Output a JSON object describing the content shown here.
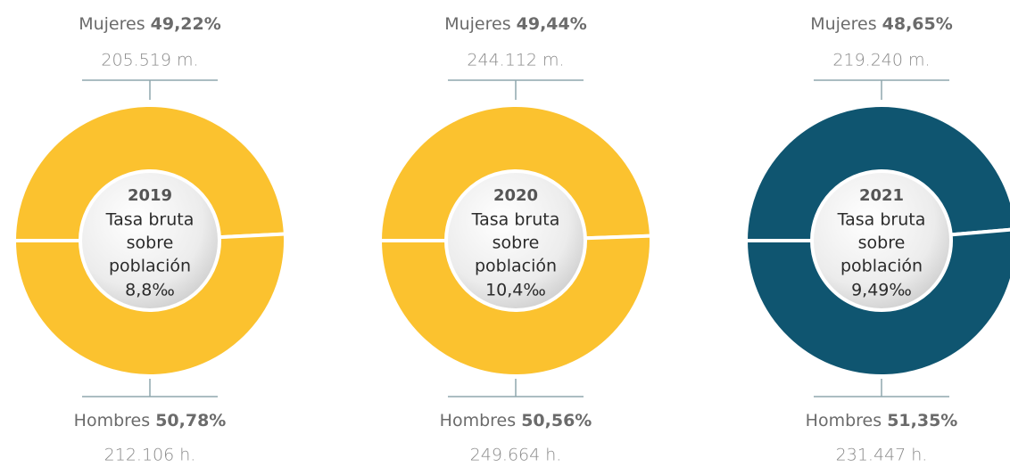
{
  "chart_data": [
    {
      "type": "pie",
      "year": "2019",
      "center_lines": [
        "Tasa bruta",
        "sobre",
        "población"
      ],
      "rate_label": "8,8‰",
      "categories": [
        "Mujeres",
        "Hombres"
      ],
      "values": [
        49.22,
        50.78
      ],
      "value_labels": [
        "49,22%",
        "50,78%"
      ],
      "count_labels": [
        "205.519 m.",
        "212.106 h."
      ],
      "color": "#fbc22f"
    },
    {
      "type": "pie",
      "year": "2020",
      "center_lines": [
        "Tasa bruta",
        "sobre",
        "población"
      ],
      "rate_label": "10,4‰",
      "categories": [
        "Mujeres",
        "Hombres"
      ],
      "values": [
        49.44,
        50.56
      ],
      "value_labels": [
        "49,44%",
        "50,56%"
      ],
      "count_labels": [
        "244.112 m.",
        "249.664 h."
      ],
      "color": "#fbc22f"
    },
    {
      "type": "pie",
      "year": "2021",
      "center_lines": [
        "Tasa bruta",
        "sobre",
        "población"
      ],
      "rate_label": "9,49‰",
      "categories": [
        "Mujeres",
        "Hombres"
      ],
      "values": [
        48.65,
        51.35
      ],
      "value_labels": [
        "48,65%",
        "51,35%"
      ],
      "count_labels": [
        "219.240 m.",
        "231.447 h."
      ],
      "color": "#0f5570"
    }
  ]
}
